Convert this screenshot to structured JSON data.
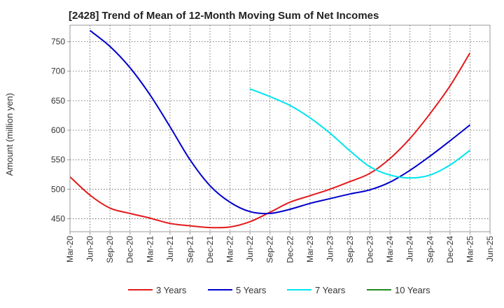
{
  "chart_data": {
    "type": "line",
    "title": "[2428]  Trend of Mean of 12-Month Moving Sum of Net Incomes",
    "ylabel": "Amount (million yen)",
    "xlabel": "",
    "ylim": [
      428,
      778
    ],
    "yticks": [
      450,
      500,
      550,
      600,
      650,
      700,
      750
    ],
    "x_ticks": [
      "Mar-20",
      "Jun-20",
      "Sep-20",
      "Dec-20",
      "Mar-21",
      "Jun-21",
      "Sep-21",
      "Dec-21",
      "Mar-22",
      "Jun-22",
      "Sep-22",
      "Dec-22",
      "Mar-23",
      "Jun-23",
      "Sep-23",
      "Dec-23",
      "Mar-24",
      "Jun-24",
      "Sep-24",
      "Dec-24",
      "Mar-25",
      "Jun-25"
    ],
    "grid": true,
    "legend_position": "bottom",
    "series": [
      {
        "name": "3 Years",
        "color": "#e41a1c",
        "points": [
          [
            "Mar-20",
            521
          ],
          [
            "Jun-20",
            490
          ],
          [
            "Sep-20",
            468
          ],
          [
            "Dec-20",
            459
          ],
          [
            "Mar-21",
            451
          ],
          [
            "Jun-21",
            442
          ],
          [
            "Sep-21",
            438
          ],
          [
            "Dec-21",
            435
          ],
          [
            "Mar-22",
            436
          ],
          [
            "Jun-22",
            445
          ],
          [
            "Sep-22",
            461
          ],
          [
            "Dec-22",
            478
          ],
          [
            "Mar-23",
            489
          ],
          [
            "Jun-23",
            500
          ],
          [
            "Sep-23",
            513
          ],
          [
            "Dec-23",
            527
          ],
          [
            "Mar-24",
            552
          ],
          [
            "Jun-24",
            586
          ],
          [
            "Sep-24",
            628
          ],
          [
            "Dec-24",
            675
          ],
          [
            "Mar-25",
            731
          ]
        ]
      },
      {
        "name": "5 Years",
        "color": "#0000cc",
        "points": [
          [
            "Jun-20",
            769
          ],
          [
            "Sep-20",
            742
          ],
          [
            "Dec-20",
            706
          ],
          [
            "Mar-21",
            660
          ],
          [
            "Jun-21",
            606
          ],
          [
            "Sep-21",
            550
          ],
          [
            "Dec-21",
            506
          ],
          [
            "Mar-22",
            478
          ],
          [
            "Jun-22",
            462
          ],
          [
            "Sep-22",
            459
          ],
          [
            "Dec-22",
            466
          ],
          [
            "Mar-23",
            476
          ],
          [
            "Jun-23",
            484
          ],
          [
            "Sep-23",
            492
          ],
          [
            "Dec-23",
            499
          ],
          [
            "Mar-24",
            512
          ],
          [
            "Jun-24",
            532
          ],
          [
            "Sep-24",
            556
          ],
          [
            "Dec-24",
            582
          ],
          [
            "Mar-25",
            609
          ]
        ]
      },
      {
        "name": "7 Years",
        "color": "#00e5ee",
        "points": [
          [
            "Jun-22",
            670
          ],
          [
            "Sep-22",
            657
          ],
          [
            "Dec-22",
            642
          ],
          [
            "Mar-23",
            621
          ],
          [
            "Jun-23",
            595
          ],
          [
            "Sep-23",
            565
          ],
          [
            "Dec-23",
            538
          ],
          [
            "Mar-24",
            524
          ],
          [
            "Jun-24",
            519
          ],
          [
            "Sep-24",
            524
          ],
          [
            "Dec-24",
            541
          ],
          [
            "Mar-25",
            566
          ]
        ]
      },
      {
        "name": "10 Years",
        "color": "#228b22",
        "points": []
      }
    ]
  }
}
